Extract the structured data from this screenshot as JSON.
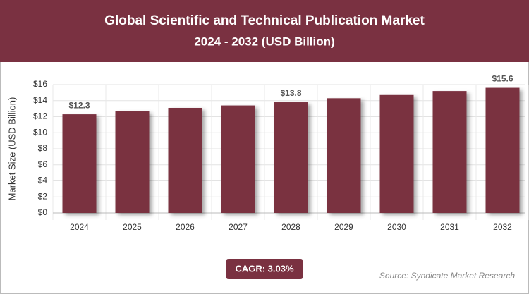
{
  "chart_data": {
    "type": "bar",
    "title": "Global Scientific and Technical Publication Market",
    "subtitle": "2024 - 2032 (USD Billion)",
    "y_label": "Market Size (USD Billion)",
    "categories": [
      "2024",
      "2025",
      "2026",
      "2027",
      "2028",
      "2029",
      "2030",
      "2031",
      "2032"
    ],
    "values": [
      12.3,
      12.7,
      13.1,
      13.4,
      13.8,
      14.3,
      14.7,
      15.2,
      15.6
    ],
    "value_labels": [
      "$12.3",
      null,
      null,
      null,
      "$13.8",
      null,
      null,
      null,
      "$15.6"
    ],
    "color": "#7a3141",
    "ylim": [
      0,
      16
    ],
    "yticks": [
      {
        "value": 0,
        "label": "$0"
      },
      {
        "value": 2,
        "label": "$2"
      },
      {
        "value": 4,
        "label": "$4"
      },
      {
        "value": 6,
        "label": "$6"
      },
      {
        "value": 8,
        "label": "$8"
      },
      {
        "value": 10,
        "label": "$10"
      },
      {
        "value": 12,
        "label": "$12"
      },
      {
        "value": 14,
        "label": "$14"
      },
      {
        "value": 16,
        "label": "$16"
      }
    ],
    "grid": true,
    "annotation": "CAGR: 3.03%",
    "source": "Source: Syndicate Market Research"
  }
}
